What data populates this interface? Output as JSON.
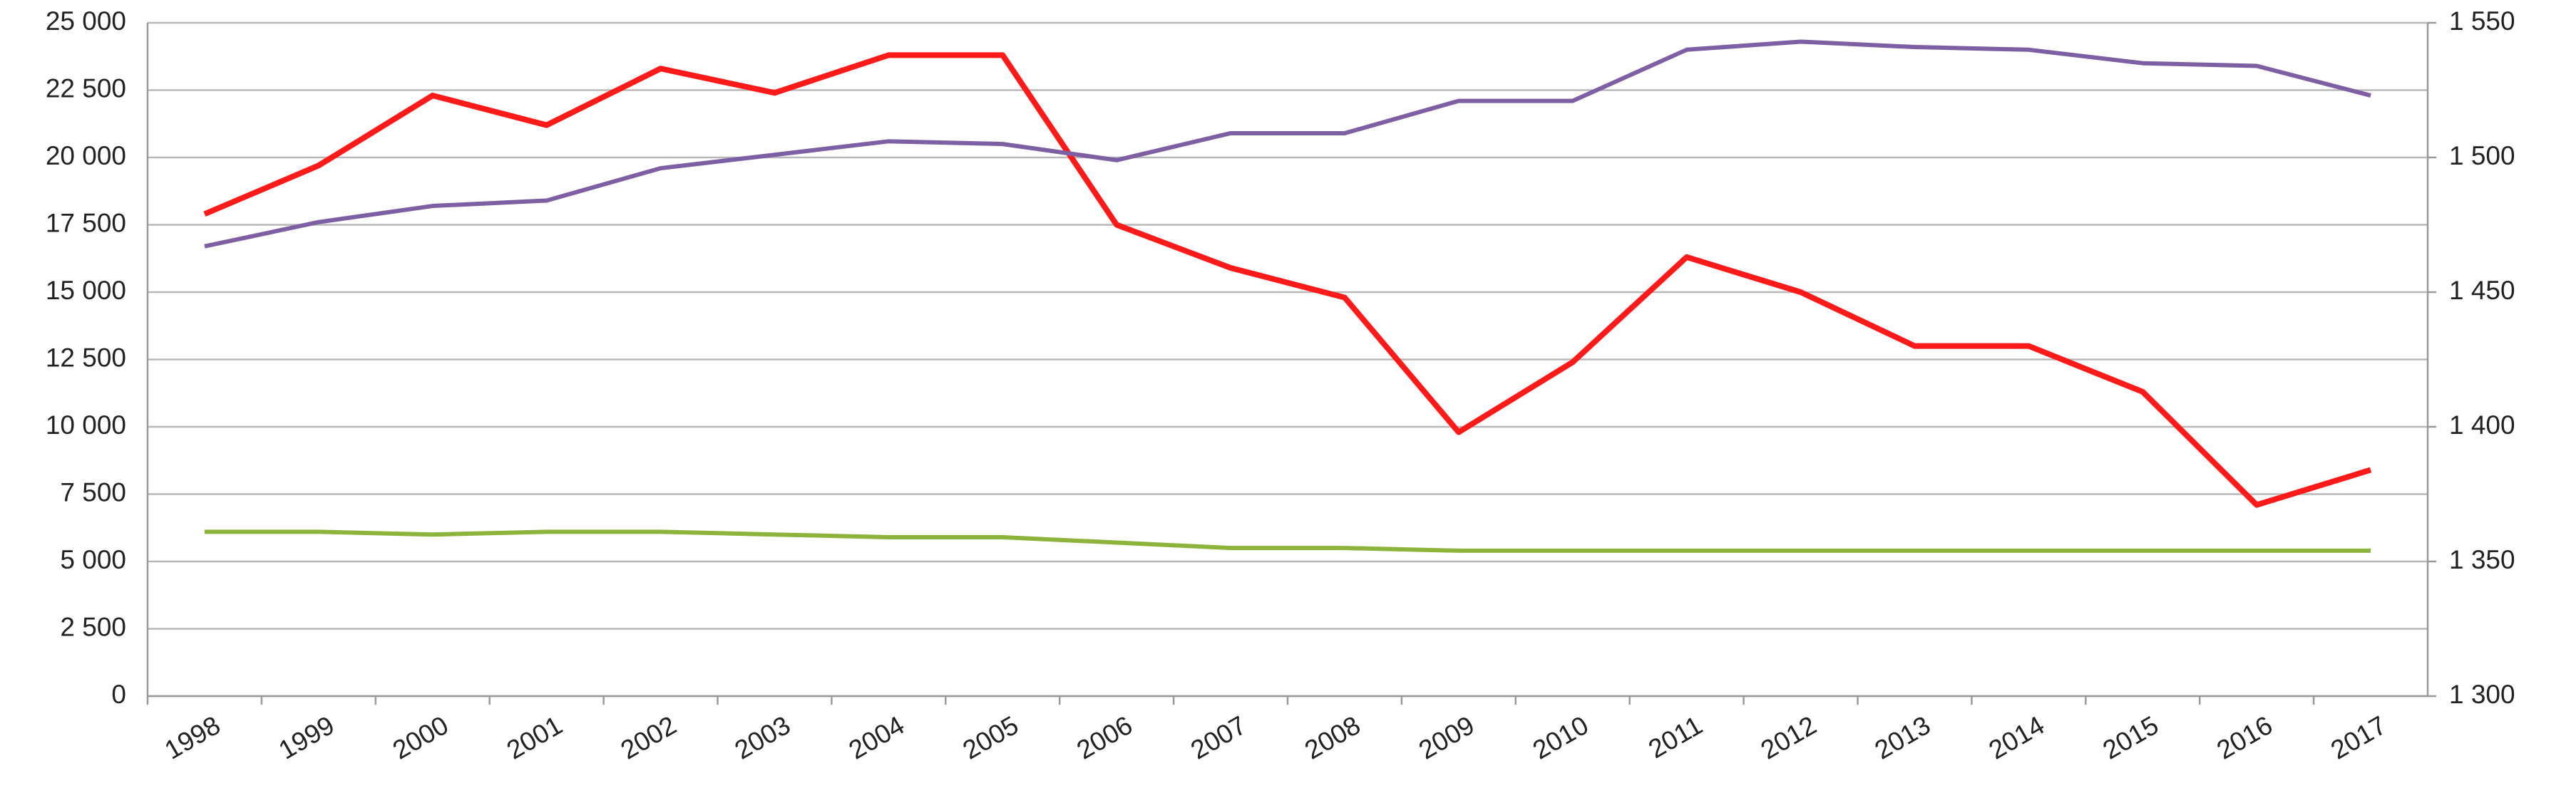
{
  "chart_data": {
    "type": "line",
    "categories": [
      "1998",
      "1999",
      "2000",
      "2001",
      "2002",
      "2003",
      "2004",
      "2005",
      "2006",
      "2007",
      "2008",
      "2009",
      "2010",
      "2011",
      "2012",
      "2013",
      "2014",
      "2015",
      "2016",
      "2017"
    ],
    "series": [
      {
        "color": "#ff1a1a",
        "axis": "y2",
        "values": [
          1479,
          1497,
          1523,
          1512,
          1533,
          1524,
          1538,
          1538,
          1475,
          1459,
          1448,
          1398,
          1424,
          1463,
          1450,
          1430,
          1430,
          1413,
          1371,
          1384
        ]
      },
      {
        "color": "#7f5fa3",
        "values": [
          16700,
          17600,
          18200,
          18400,
          19600,
          20100,
          20600,
          20500,
          19900,
          20900,
          20900,
          22100,
          22100,
          24000,
          24300,
          24100,
          24000,
          23500,
          23400,
          22300
        ]
      },
      {
        "color": "#8cb43c",
        "values": [
          6100,
          6100,
          6000,
          6100,
          6100,
          6000,
          5900,
          5900,
          5700,
          5500,
          5500,
          5400,
          5400,
          5400,
          5400,
          5400,
          5400,
          5400,
          5400,
          5400
        ]
      }
    ],
    "ylim": [
      0,
      25000
    ],
    "yticks": [
      0,
      {
        "value": 2500,
        "label": "2 500"
      },
      {
        "value": 5000,
        "label": "5 000"
      },
      {
        "value": 7500,
        "label": "7 500"
      },
      {
        "value": 10000,
        "label": "10 000"
      },
      {
        "value": 12500,
        "label": "12 500"
      },
      {
        "value": 15000,
        "label": "15 000"
      },
      {
        "value": 17500,
        "label": "17 500"
      },
      {
        "value": 20000,
        "label": "20 000"
      },
      {
        "value": 22500,
        "label": "22 500"
      },
      {
        "value": 25000,
        "label": "25 000"
      }
    ],
    "y2lim": [
      1300,
      1550
    ],
    "y2ticks": [
      {
        "value": 1300,
        "label": "1 300"
      },
      {
        "value": 1350,
        "label": "1 350"
      },
      {
        "value": 1400,
        "label": "1 400"
      },
      {
        "value": 1450,
        "label": "1 450"
      },
      {
        "value": 1500,
        "label": "1 500"
      },
      {
        "value": 1550,
        "label": "1 550"
      }
    ],
    "grid": true
  }
}
